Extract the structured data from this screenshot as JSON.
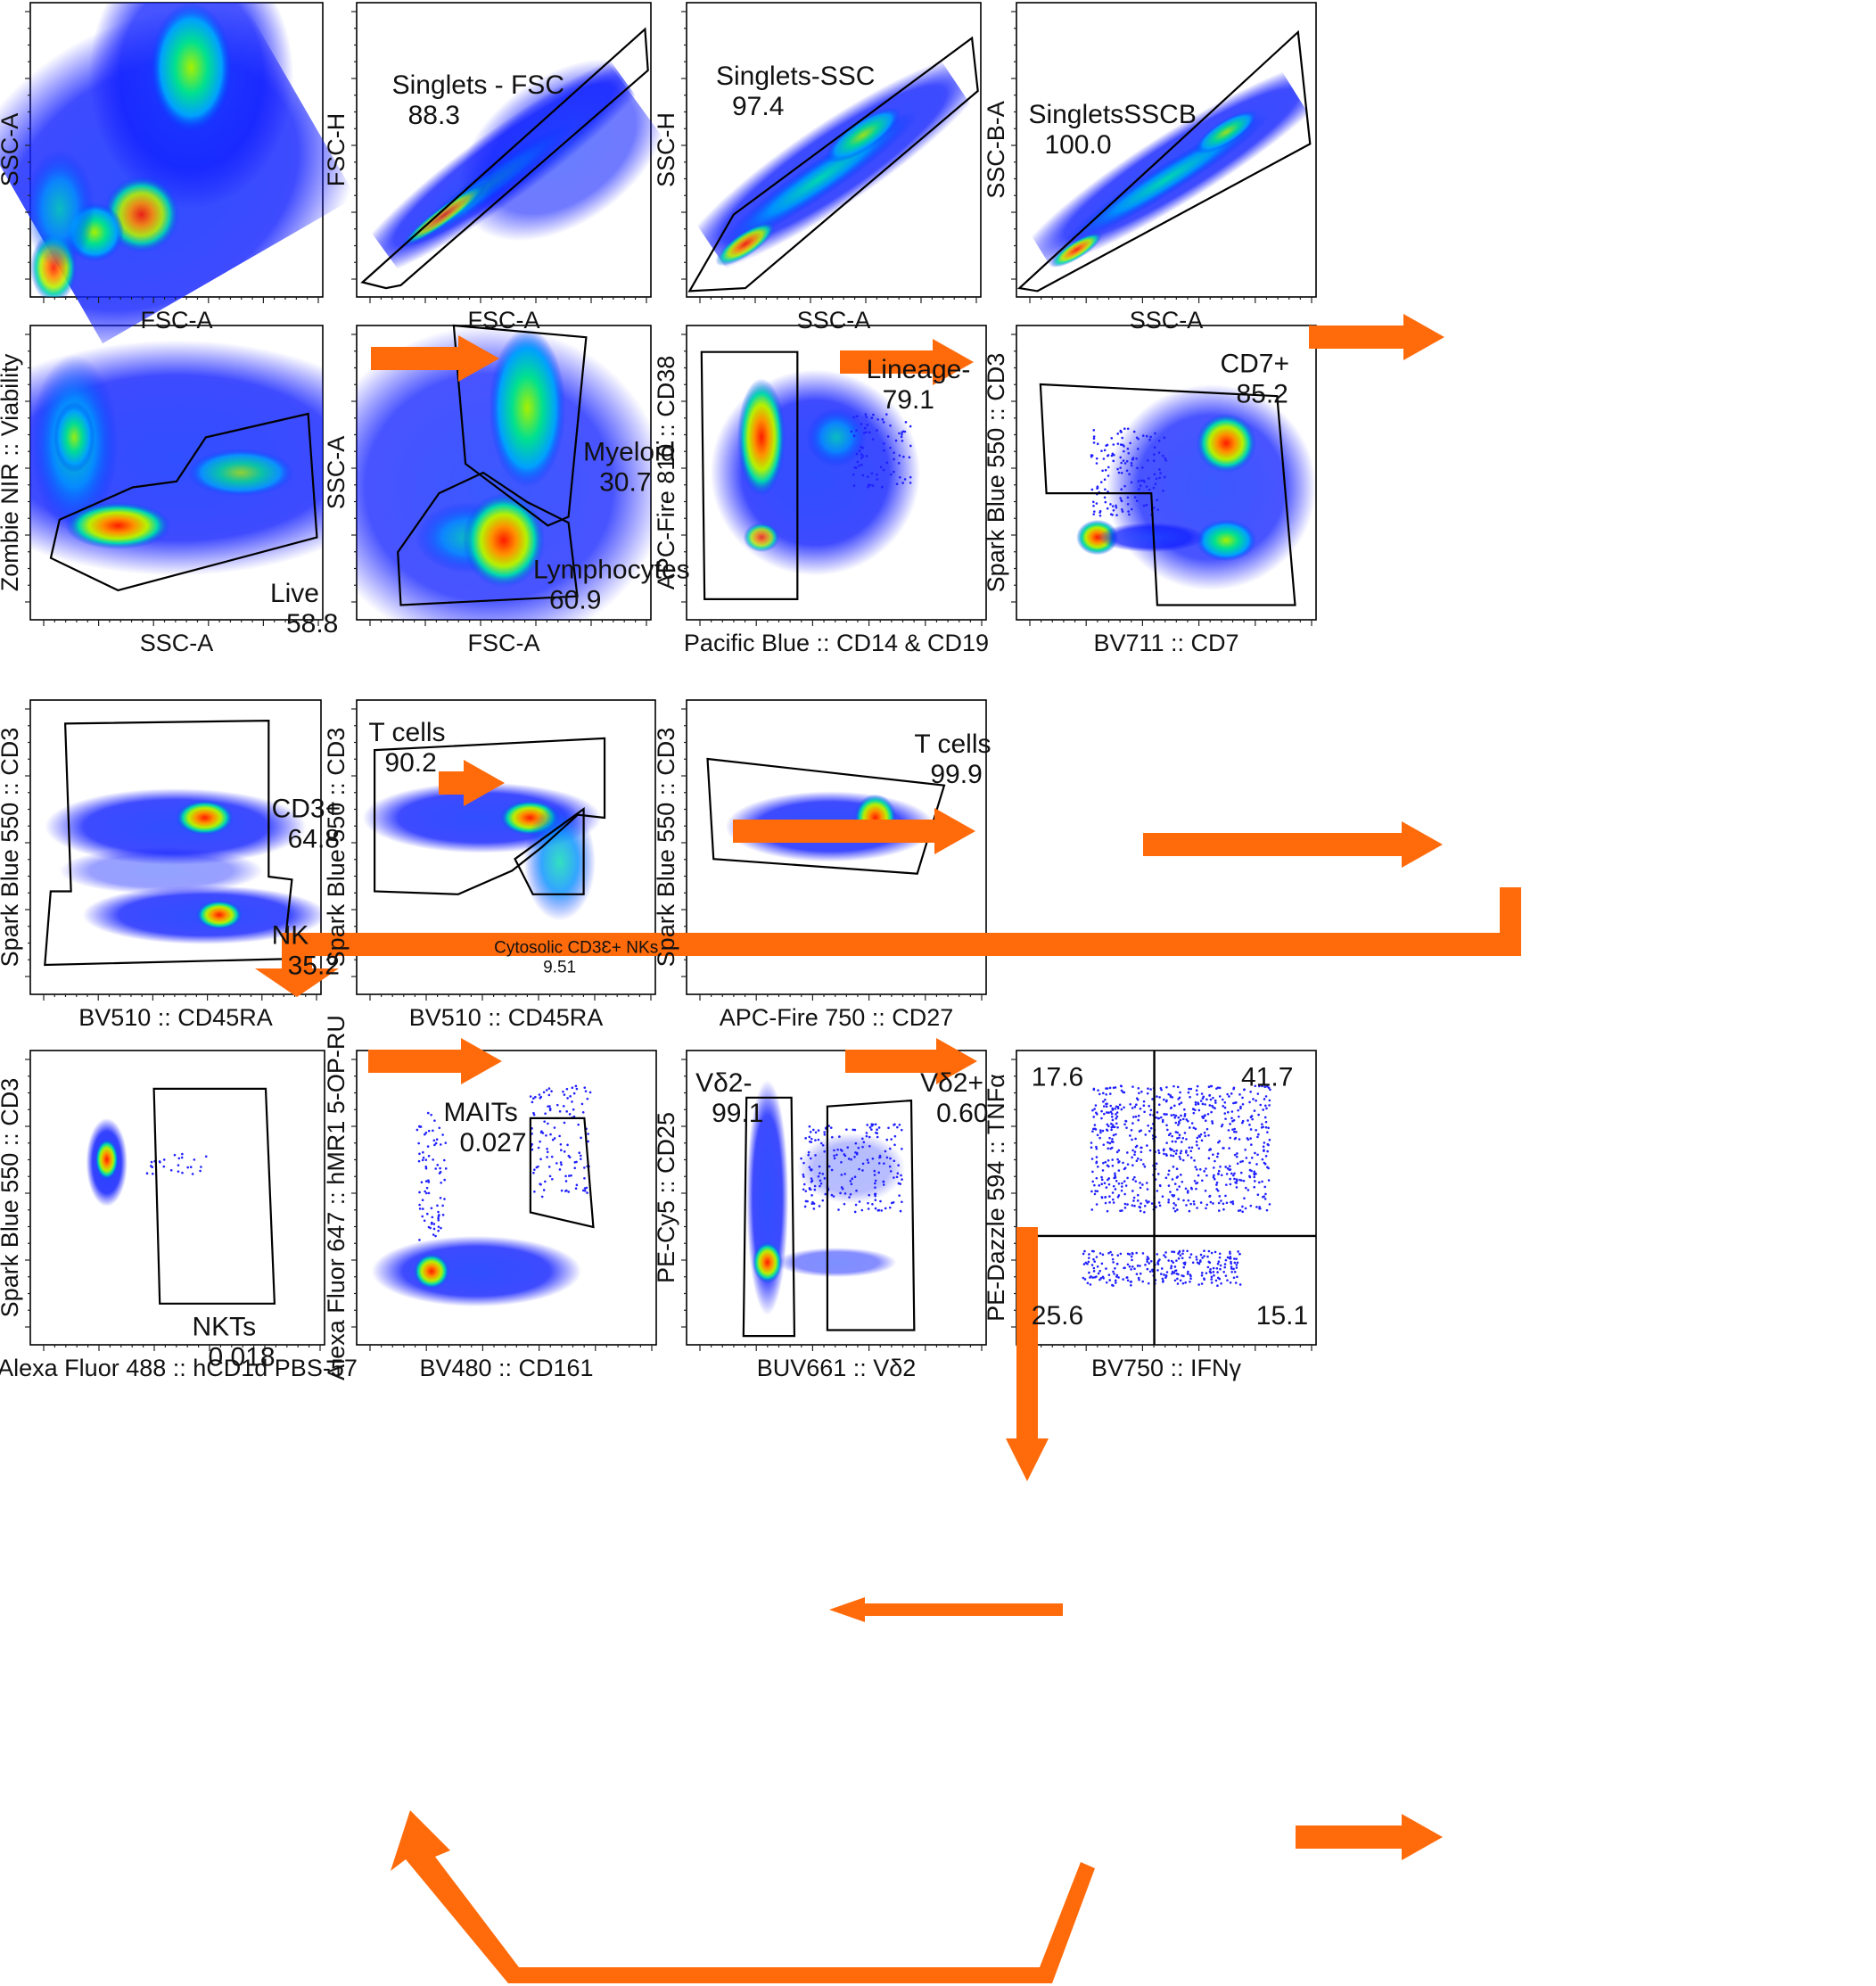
{
  "panels": [
    {
      "id": "p1",
      "x": "FSC-A",
      "y": "SSC-A",
      "gates": []
    },
    {
      "id": "p2",
      "x": "FSC-A",
      "y": "FSC-H",
      "gates": [
        {
          "name": "Singlets - FSC",
          "value": "88.3"
        }
      ]
    },
    {
      "id": "p3",
      "x": "SSC-A",
      "y": "SSC-H",
      "gates": [
        {
          "name": "Singlets-SSC",
          "value": "97.4"
        }
      ]
    },
    {
      "id": "p4",
      "x": "SSC-A",
      "y": "SSC-B-A",
      "gates": [
        {
          "name": "SingletsSSCB",
          "value": "100.0"
        }
      ]
    },
    {
      "id": "p5",
      "x": "SSC-A",
      "y": "Zombie NIR :: Viability",
      "gates": [
        {
          "name": "Live",
          "value": "58.8"
        }
      ]
    },
    {
      "id": "p6",
      "x": "FSC-A",
      "y": "SSC-A",
      "gates": [
        {
          "name": "Myeloid",
          "value": "30.7"
        },
        {
          "name": "Lymphocytes",
          "value": "60.9"
        }
      ]
    },
    {
      "id": "p7",
      "x": "Pacific Blue :: CD14 & CD19",
      "y": "APC-Fire 810 :: CD38",
      "gates": [
        {
          "name": "Lineage-",
          "value": "79.1"
        }
      ]
    },
    {
      "id": "p8",
      "x": "BV711 :: CD7",
      "y": "Spark Blue 550 :: CD3",
      "gates": [
        {
          "name": "CD7+",
          "value": "85.2"
        }
      ]
    },
    {
      "id": "p9",
      "x": "BV510 :: CD45RA",
      "y": "Spark Blue 550 :: CD3",
      "gates": [
        {
          "name": "CD3+",
          "value": "64.8"
        },
        {
          "name": "NK",
          "value": "35.2"
        }
      ]
    },
    {
      "id": "p10",
      "x": "BV510 :: CD45RA",
      "y": "Spark Blue  550 :: CD3",
      "gates": [
        {
          "name": "T cells",
          "value": "90.2"
        },
        {
          "name": "Cytosolic CD3Ɛ+ NKs",
          "value": "9.51"
        }
      ]
    },
    {
      "id": "p11",
      "x": "APC-Fire 750 :: CD27",
      "y": "Spark Blue 550 :: CD3",
      "gates": [
        {
          "name": "T cells",
          "value": "99.9"
        }
      ]
    },
    {
      "id": "p12",
      "x": "Alexa Fluor 488 :: hCD1d PBS-57",
      "y": "Spark Blue 550 :: CD3",
      "gates": [
        {
          "name": "NKTs",
          "value": "0.018"
        }
      ]
    },
    {
      "id": "p13",
      "x": "BV480 :: CD161",
      "y": "Alexa Fluor 647 :: hMR1 5-OP-RU",
      "gates": [
        {
          "name": "MAITs",
          "value": "0.027"
        }
      ]
    },
    {
      "id": "p14",
      "x": "BUV661 :: Vδ2",
      "y": "PE-Cy5 :: CD25",
      "gates": [
        {
          "name": "Vδ2-",
          "value": "99.1"
        },
        {
          "name": "Vδ2+",
          "value": "0.60"
        }
      ]
    },
    {
      "id": "p15",
      "x": "BV750 :: IFNγ",
      "y": "PE-Dazzle 594 :: TNFα",
      "quadrants": [
        "17.6",
        "41.7",
        "25.6",
        "15.1"
      ]
    }
  ],
  "colors": {
    "arrow": "#ff6a0a",
    "density_low": "#1010ff",
    "density_mid": "#00d8b0",
    "density_high": "#ff2000"
  }
}
